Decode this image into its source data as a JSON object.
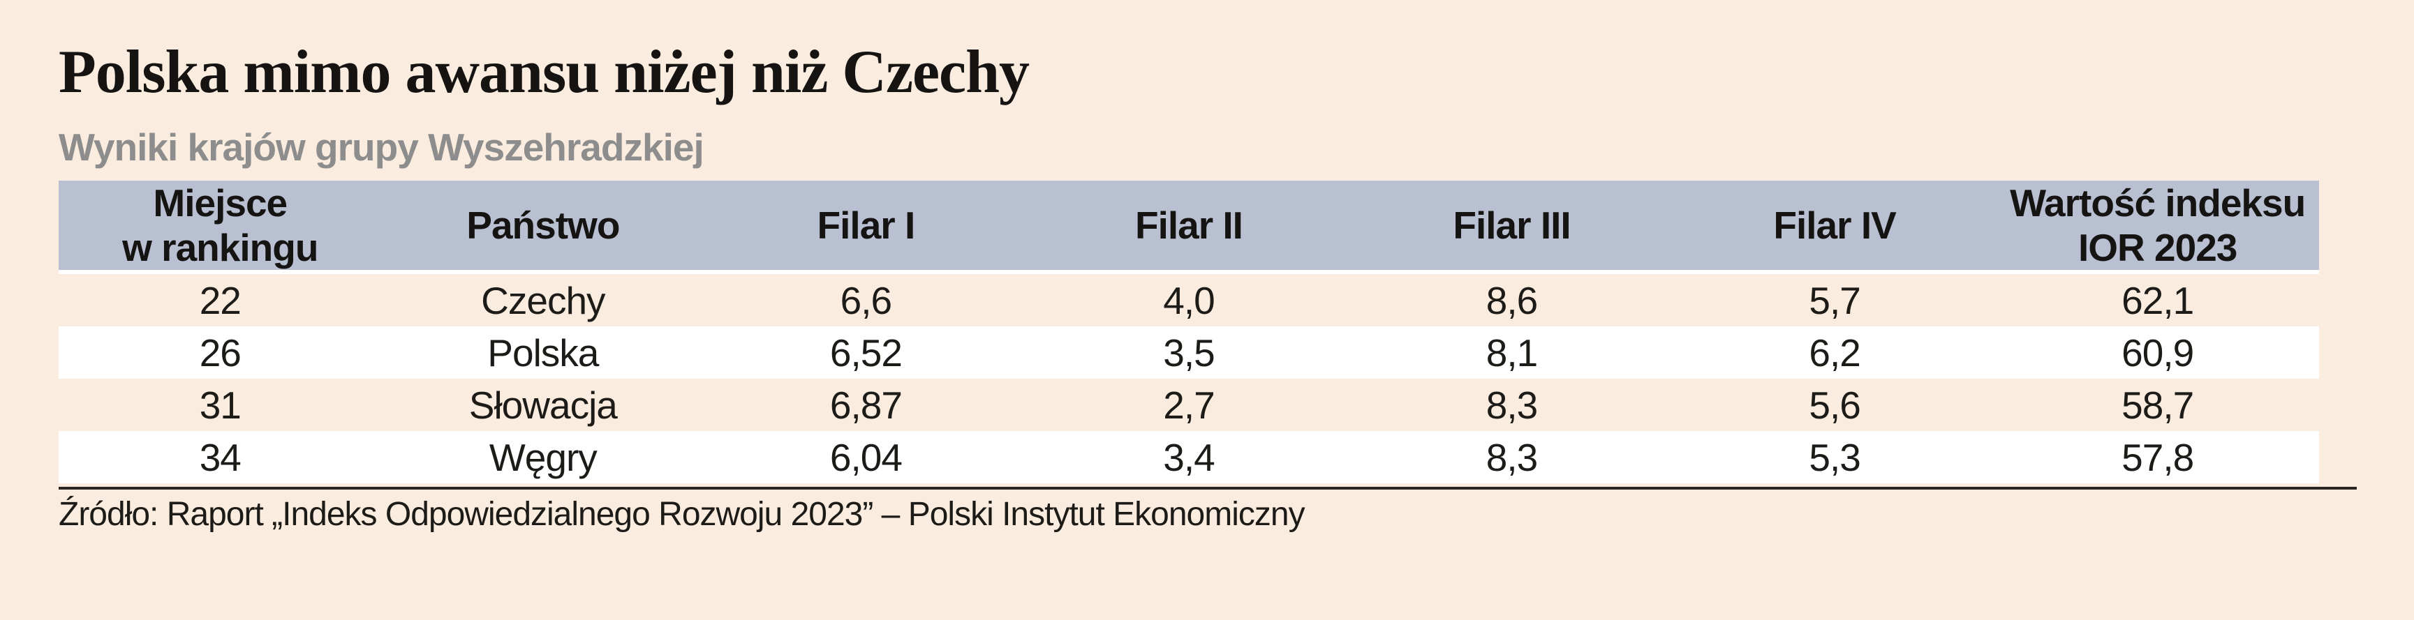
{
  "page": {
    "title": "Polska mimo awansu niżej niż Czechy",
    "subtitle": "Wyniki krajów grupy Wyszehradzkiej",
    "source": "Źródło: Raport „Indeks Odpowiedzialnego Rozwoju 2023” – Polski Instytut Ekonomiczny"
  },
  "colors": {
    "page_bg": "#faecdf",
    "header_bg": "#b9c0d2",
    "row_alt_bg": "#ffffff",
    "title_text": "#161412",
    "subtitle_text": "#8d8d8d",
    "body_text": "#1d1b18",
    "rule": "#2b251f"
  },
  "chart_data": {
    "type": "table",
    "title": "Polska mimo awansu niżej niż Czechy",
    "subtitle": "Wyniki krajów grupy Wyszehradzkiej",
    "source": "Źródło: Raport „Indeks Odpowiedzialnego Rozwoju 2023” – Polski Instytut Ekonomiczny",
    "columns": [
      [
        "Miejsce",
        "w rankingu"
      ],
      [
        "Państwo"
      ],
      [
        "Filar I"
      ],
      [
        "Filar II"
      ],
      [
        "Filar III"
      ],
      [
        "Filar IV"
      ],
      [
        "Wartość indeksu",
        "IOR 2023"
      ]
    ],
    "rows": [
      [
        "22",
        "Czechy",
        "6,6",
        "4,0",
        "8,6",
        "5,7",
        "62,1"
      ],
      [
        "26",
        "Polska",
        "6,52",
        "3,5",
        "8,1",
        "6,2",
        "60,9"
      ],
      [
        "31",
        "Słowacja",
        "6,87",
        "2,7",
        "8,3",
        "5,6",
        "58,7"
      ],
      [
        "34",
        "Węgry",
        "6,04",
        "3,4",
        "8,3",
        "5,3",
        "57,8"
      ]
    ]
  }
}
